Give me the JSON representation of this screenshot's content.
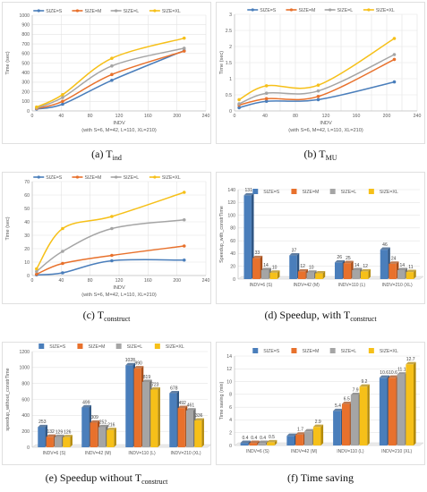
{
  "series_names": [
    "SIZE=S",
    "SIZE=M",
    "SIZE=L",
    "SIZE=XL"
  ],
  "colors": {
    "S": "#4a7ebb",
    "M": "#e8712c",
    "L": "#a5a5a5",
    "XL": "#f6c019"
  },
  "captions": [
    {
      "label": "(a)",
      "sym": "T",
      "sub": "ind",
      "tail": ""
    },
    {
      "label": "(b)",
      "sym": "T",
      "sub": "MU",
      "tail": ""
    },
    {
      "label": "(c)",
      "sym": "T",
      "sub": "construct",
      "tail": ""
    },
    {
      "label": "(d) Speedup, with",
      "sym": "T",
      "sub": "construct",
      "tail": ""
    },
    {
      "label": "(e) Speedup without",
      "sym": "T",
      "sub": "construct",
      "tail": ""
    },
    {
      "label": "(f) Time saving",
      "sym": "",
      "sub": "",
      "tail": ""
    }
  ],
  "chart_data": [
    {
      "type": "line",
      "title": "",
      "xlabel": "INDV",
      "xlabel2": "(with S=6, M=42, L=110, XL=210)",
      "ylabel": "Time (sec)",
      "xlim": [
        0,
        240
      ],
      "ylim": [
        0,
        1000
      ],
      "xticks": [
        0,
        40,
        80,
        120,
        160,
        200,
        240
      ],
      "yticks": [
        0,
        100,
        200,
        300,
        400,
        500,
        600,
        700,
        800,
        900,
        1000
      ],
      "x": [
        6,
        42,
        110,
        210
      ],
      "series": [
        {
          "name": "SIZE=S",
          "values": [
            20,
            70,
            320,
            630
          ]
        },
        {
          "name": "SIZE=M",
          "values": [
            25,
            100,
            380,
            625
          ]
        },
        {
          "name": "SIZE=L",
          "values": [
            30,
            140,
            470,
            655
          ]
        },
        {
          "name": "SIZE=XL",
          "values": [
            40,
            170,
            550,
            760
          ]
        }
      ],
      "legend": "top",
      "grid": true
    },
    {
      "type": "line",
      "title": "",
      "xlabel": "INDV",
      "xlabel2": "(with S=6, M=42, L=110, XL=210)",
      "ylabel": "Time (sec)",
      "xlim": [
        0,
        240
      ],
      "ylim": [
        0,
        3
      ],
      "xticks": [
        0,
        20,
        40,
        60,
        80,
        100,
        120,
        140,
        160,
        180,
        200,
        220,
        240
      ],
      "xticks_labeled": [
        0,
        40,
        80,
        120,
        160,
        200,
        240
      ],
      "yticks": [
        0,
        0.5,
        1,
        1.5,
        2,
        2.5,
        3
      ],
      "x": [
        6,
        42,
        110,
        210
      ],
      "series": [
        {
          "name": "SIZE=S",
          "values": [
            0.1,
            0.3,
            0.35,
            0.9
          ]
        },
        {
          "name": "SIZE=M",
          "values": [
            0.18,
            0.38,
            0.45,
            1.6
          ]
        },
        {
          "name": "SIZE=L",
          "values": [
            0.22,
            0.55,
            0.62,
            1.75
          ]
        },
        {
          "name": "SIZE=XL",
          "values": [
            0.35,
            0.78,
            0.8,
            2.25
          ]
        }
      ],
      "legend": "top",
      "grid": true
    },
    {
      "type": "line",
      "title": "",
      "xlabel": "INDV",
      "xlabel2": "(with S=6, M=42, L=110, XL=210)",
      "ylabel": "Time (sec)",
      "xlim": [
        0,
        240
      ],
      "ylim": [
        0,
        70
      ],
      "xticks": [
        0,
        40,
        80,
        120,
        160,
        200,
        240
      ],
      "yticks": [
        0,
        10,
        20,
        30,
        40,
        50,
        60,
        70
      ],
      "x": [
        6,
        42,
        110,
        210
      ],
      "series": [
        {
          "name": "SIZE=S",
          "values": [
            0.5,
            2,
            11,
            11.5
          ]
        },
        {
          "name": "SIZE=M",
          "values": [
            1,
            9,
            15,
            22
          ]
        },
        {
          "name": "SIZE=L",
          "values": [
            3,
            18,
            35,
            41.5
          ]
        },
        {
          "name": "SIZE=XL",
          "values": [
            5,
            35,
            44,
            62
          ]
        }
      ],
      "legend": "top",
      "grid": true
    },
    {
      "type": "bar",
      "title": "",
      "ylabel": "Speedup_with_constrTime",
      "ylim": [
        0,
        140
      ],
      "yticks": [
        0,
        20,
        40,
        60,
        80,
        100,
        120,
        140
      ],
      "categories": [
        "INDV=6 (S)",
        "INDV=42 (M)",
        "INDV=110 (L)",
        "INDV=210 (XL)"
      ],
      "series": [
        {
          "name": "SIZE=S",
          "values": [
            131,
            37,
            26,
            46
          ]
        },
        {
          "name": "SIZE=M",
          "values": [
            33,
            12,
            25,
            24
          ]
        },
        {
          "name": "SIZE=L",
          "values": [
            14,
            10,
            14,
            14
          ]
        },
        {
          "name": "SIZE=XL",
          "values": [
            10,
            9,
            12,
            11
          ]
        }
      ],
      "labels": [
        [
          "131",
          "37",
          "26",
          "46"
        ],
        [
          "33",
          "12",
          "25",
          "24"
        ],
        [
          "14",
          "10",
          "14",
          "14"
        ],
        [
          "10",
          "",
          "12",
          "11"
        ]
      ],
      "legend": "top",
      "grid": true
    },
    {
      "type": "bar",
      "title": "",
      "ylabel": "speedup_without_constrTime",
      "ylim": [
        0,
        1200
      ],
      "yticks": [
        0,
        200,
        400,
        600,
        800,
        1000,
        1200
      ],
      "categories": [
        "INDV=6 (S)",
        "INDV=42 (M)",
        "INDV=110 (L)",
        "INDV=210 (XL)"
      ],
      "series": [
        {
          "name": "SIZE=S",
          "values": [
            253,
            499,
            1028,
            678
          ]
        },
        {
          "name": "SIZE=M",
          "values": [
            132,
            309,
            990,
            492
          ]
        },
        {
          "name": "SIZE=L",
          "values": [
            129,
            252,
            819,
            461
          ]
        },
        {
          "name": "SIZE=XL",
          "values": [
            126,
            216,
            723,
            336
          ]
        }
      ],
      "labels": [
        [
          "253",
          "499",
          "1028",
          "678"
        ],
        [
          "132",
          "309",
          "990",
          "492"
        ],
        [
          "129",
          "252",
          "819",
          "461"
        ],
        [
          "126",
          "216",
          "723",
          "336"
        ]
      ],
      "legend": "top",
      "grid": true
    },
    {
      "type": "bar",
      "title": "",
      "ylabel": "Time saving (min)",
      "ylim": [
        0,
        14
      ],
      "yticks": [
        0,
        2,
        4,
        6,
        8,
        10,
        12,
        14
      ],
      "categories": [
        "INDV=6 (S)",
        "INDV=42 (M)",
        "INDV=110 (L)",
        "INDV=210 (XL)"
      ],
      "series": [
        {
          "name": "SIZE=S",
          "values": [
            0.4,
            1.5,
            5.4,
            10.6
          ]
        },
        {
          "name": "SIZE=M",
          "values": [
            0.4,
            1.7,
            6.5,
            10.6
          ]
        },
        {
          "name": "SIZE=L",
          "values": [
            0.4,
            2.2,
            7.9,
            11.1
          ]
        },
        {
          "name": "SIZE=XL",
          "values": [
            0.5,
            2.9,
            9.2,
            12.7
          ]
        }
      ],
      "labels": [
        [
          "0.4",
          "",
          "5.4",
          "10.6"
        ],
        [
          "0.4",
          "1.7",
          "6.5",
          "10.6"
        ],
        [
          "0.4",
          "",
          "7.9",
          "11.1"
        ],
        [
          "0.5",
          "2.9",
          "9.2",
          "12.7"
        ]
      ],
      "legend": "top",
      "grid": true
    }
  ]
}
